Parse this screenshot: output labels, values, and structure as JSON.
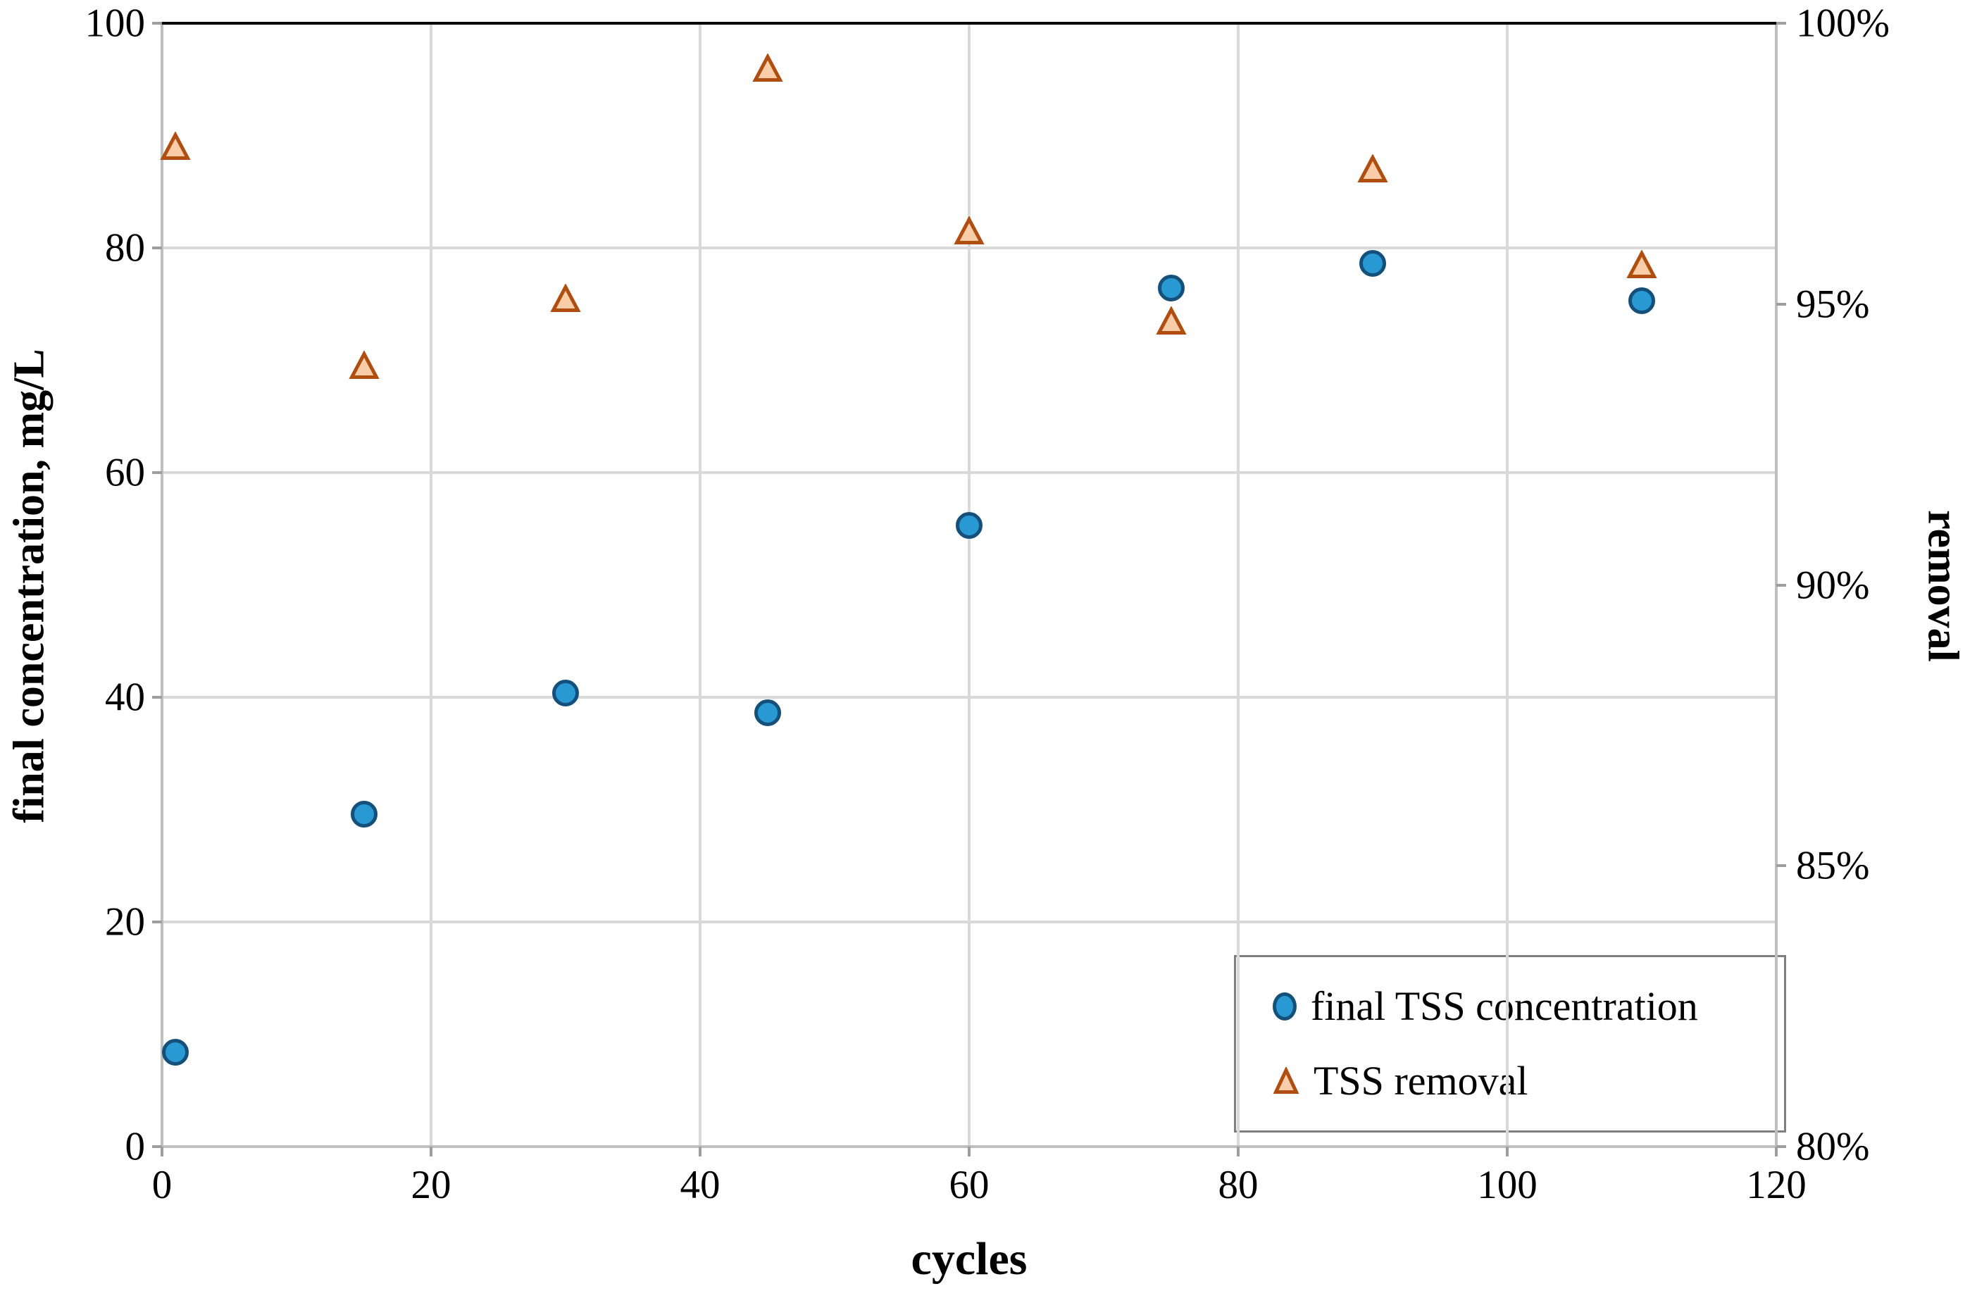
{
  "chart_data": {
    "type": "scatter",
    "x": [
      1,
      15,
      30,
      45,
      60,
      75,
      90,
      110
    ],
    "series": [
      {
        "name": "final TSS concentration",
        "yaxis": "left",
        "marker": "circle",
        "marker_fill": "#2999D4",
        "marker_stroke": "#15507A",
        "values": [
          8.4,
          29.6,
          40.4,
          38.6,
          55.3,
          76.4,
          78.6,
          75.3
        ]
      },
      {
        "name": "TSS removal",
        "yaxis": "right",
        "marker": "triangle",
        "marker_fill": "#FACDA9",
        "marker_stroke": "#B04E12",
        "values": [
          97.8,
          93.9,
          95.1,
          99.2,
          96.3,
          94.7,
          97.4,
          95.7
        ]
      }
    ],
    "xlabel": "cycles",
    "ylabel_left": "final concentration, mg/L",
    "ylabel_right": "removal",
    "xlim": [
      0,
      120
    ],
    "ylim_left": [
      0,
      100
    ],
    "ylim_right": [
      80,
      100
    ],
    "x_tick_values": [
      0,
      20,
      40,
      60,
      80,
      100,
      120
    ],
    "x_tick_labels": [
      "0",
      "20",
      "40",
      "60",
      "80",
      "100",
      "120"
    ],
    "left_tick_values": [
      0,
      20,
      40,
      60,
      80,
      100
    ],
    "left_tick_labels": [
      "0",
      "20",
      "40",
      "60",
      "80",
      "100"
    ],
    "right_tick_values": [
      80,
      85,
      90,
      95,
      100
    ],
    "right_tick_labels": [
      "80%",
      "85%",
      "90%",
      "95%",
      "100%"
    ],
    "grid": true,
    "legend_position": "bottom-right"
  },
  "colors": {
    "gridline": "#D9D9D9",
    "axis_line": "#BFBFBF",
    "tick_mark": "#9E9E9E",
    "top_border": "#000000",
    "legend_border": "#7F7F7F",
    "text": "#000000"
  }
}
